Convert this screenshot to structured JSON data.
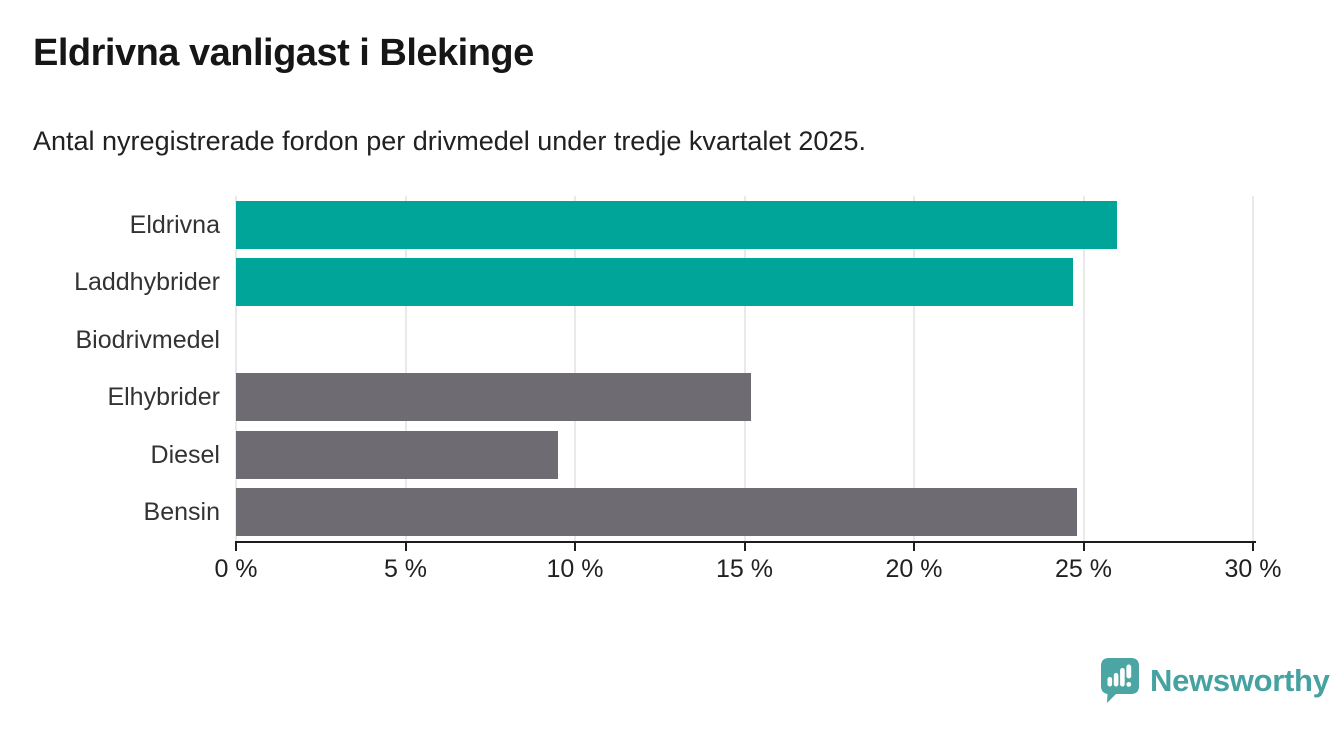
{
  "header": {
    "title": "Eldrivna vanligast i Blekinge",
    "subtitle": "Antal nyregistrerade fordon per drivmedel under tredje kvartalet 2025."
  },
  "chart_data": {
    "type": "bar",
    "orientation": "horizontal",
    "title": "Eldrivna vanligast i Blekinge",
    "subtitle": "Antal nyregistrerade fordon per drivmedel under tredje kvartalet 2025.",
    "categories": [
      "Eldrivna",
      "Laddhybrider",
      "Biodrivmedel",
      "Elhybrider",
      "Diesel",
      "Bensin"
    ],
    "values": [
      26.0,
      24.7,
      0,
      15.2,
      9.5,
      24.8
    ],
    "unit": "%",
    "bar_colors": [
      "#00a59a",
      "#00a59a",
      "#6e6b72",
      "#6e6b72",
      "#6e6b72",
      "#6e6b72"
    ],
    "xlabel": "",
    "ylabel": "",
    "xlim": [
      0,
      30
    ],
    "x_ticks": [
      0,
      5,
      10,
      15,
      20,
      25,
      30
    ],
    "x_tick_labels": [
      "0 %",
      "5 %",
      "10 %",
      "15 %",
      "20 %",
      "25 %",
      "30 %"
    ],
    "grid": true,
    "legend": "none"
  },
  "colors": {
    "highlight": "#00a59a",
    "neutral": "#6e6b72",
    "grid": "#e9e9e9",
    "axis": "#1d1d1d",
    "logo": "#45a2a1"
  },
  "branding": {
    "logo_text": "Newsworthy",
    "logo_icon": "newsworthy-speech-bubble-barchart-icon"
  }
}
